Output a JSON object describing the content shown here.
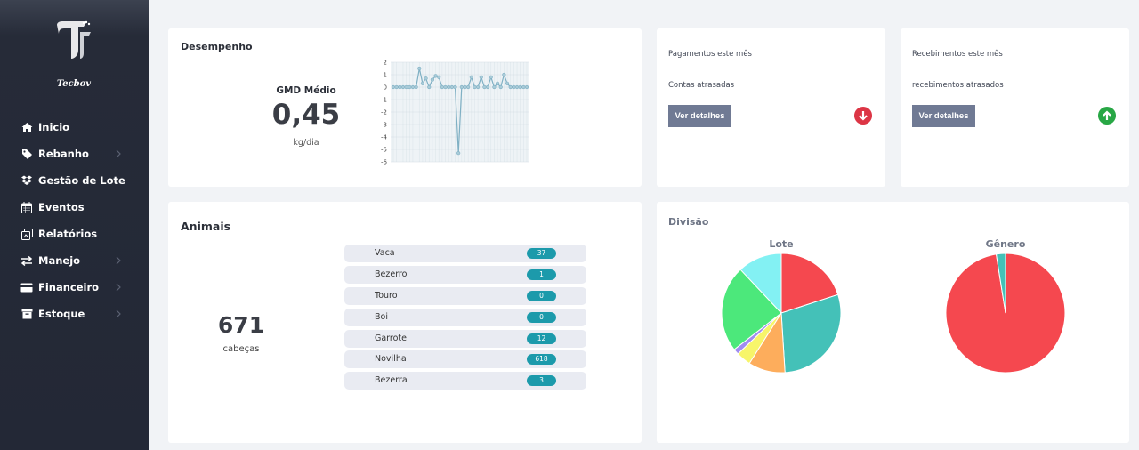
{
  "brand": {
    "name": "Tecbov"
  },
  "sidebar": {
    "items": [
      {
        "label": "Inicio",
        "icon": "home-icon",
        "chevron": false
      },
      {
        "label": "Rebanho",
        "icon": "tag-icon",
        "chevron": true
      },
      {
        "label": "Gestão de Lote",
        "icon": "dropbox-icon",
        "chevron": false
      },
      {
        "label": "Eventos",
        "icon": "calendar-icon",
        "chevron": false
      },
      {
        "label": "Relatórios",
        "icon": "report-icon",
        "chevron": false
      },
      {
        "label": "Manejo",
        "icon": "exchange-icon",
        "chevron": true
      },
      {
        "label": "Financeiro",
        "icon": "credit-card-icon",
        "chevron": true
      },
      {
        "label": "Estoque",
        "icon": "box-icon",
        "chevron": true
      }
    ]
  },
  "desempenho": {
    "title": "Desempenho",
    "gmd_label": "GMD Médio",
    "gmd_value": "0,45",
    "gmd_unit": "kg/dia",
    "chart_data": {
      "type": "line",
      "y_ticks": [
        "2",
        "1",
        "0",
        "-1",
        "-2",
        "-3",
        "-4",
        "-5",
        "-6"
      ],
      "ylim": [
        -6,
        2
      ],
      "values": [
        0,
        0,
        0,
        0,
        0,
        0,
        0,
        0,
        1.5,
        0.3,
        0.7,
        0,
        0.6,
        0.9,
        0.8,
        0,
        0,
        0,
        0,
        0,
        -5.3,
        0,
        0,
        0,
        0.8,
        0,
        0,
        0.8,
        0,
        0,
        0.8,
        0,
        0.3,
        0,
        1.0,
        0.3,
        0,
        0,
        0,
        0,
        0,
        0
      ]
    }
  },
  "pagamentos": {
    "line1": "Pagamentos este mês",
    "line2": "Contas atrasadas",
    "button": "Ver detalhes",
    "icon": "arrow-down-circle-icon",
    "color": "#dc3545"
  },
  "recebimentos": {
    "line1": "Recebimentos este mês",
    "line2": "recebimentos atrasados",
    "button": "Ver detalhes",
    "icon": "arrow-up-circle-icon",
    "color": "#28a745"
  },
  "animais": {
    "title": "Animais",
    "total": "671",
    "unit": "cabeças",
    "rows": [
      {
        "name": "Vaca",
        "count": "37"
      },
      {
        "name": "Bezerro",
        "count": "1"
      },
      {
        "name": "Touro",
        "count": "0"
      },
      {
        "name": "Boi",
        "count": "0"
      },
      {
        "name": "Garrote",
        "count": "12"
      },
      {
        "name": "Novilha",
        "count": "618"
      },
      {
        "name": "Bezerra",
        "count": "3"
      }
    ]
  },
  "divisao": {
    "title": "Divisão",
    "chart_data": [
      {
        "type": "pie",
        "title": "Lote",
        "slices": [
          {
            "value": 20,
            "color": "#f5484f"
          },
          {
            "value": 29,
            "color": "#44c1b8"
          },
          {
            "value": 10,
            "color": "#fdad5c"
          },
          {
            "value": 4,
            "color": "#f7f56a"
          },
          {
            "value": 1.5,
            "color": "#a08cf0"
          },
          {
            "value": 23.5,
            "color": "#4ce87b"
          },
          {
            "value": 12,
            "color": "#83f1f3"
          }
        ]
      },
      {
        "type": "pie",
        "title": "Gênero",
        "slices": [
          {
            "value": 97.5,
            "color": "#f5484f"
          },
          {
            "value": 2.5,
            "color": "#44c1b8"
          }
        ]
      }
    ]
  }
}
